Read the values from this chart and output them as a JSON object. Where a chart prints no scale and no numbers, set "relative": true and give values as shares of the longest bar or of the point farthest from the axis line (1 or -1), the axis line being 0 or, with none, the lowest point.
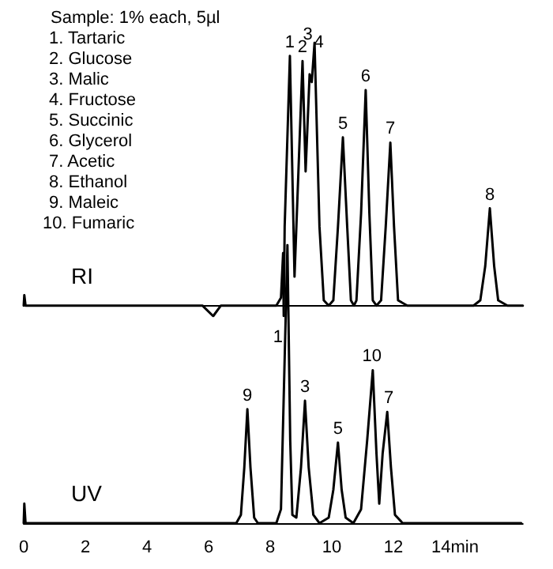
{
  "chart_data": [
    {
      "type": "line",
      "relative": true,
      "marker": "none",
      "line_style": "solid",
      "grid": false,
      "legend": false,
      "tick_labels": false,
      "xlim": [
        0,
        16.2
      ],
      "annotations": [
        "Sample: 1% each, 5µl",
        "1. Tartaric",
        "2. Glucose",
        "3. Malic",
        "4. Fructose",
        "5. Succinic",
        "6. Glycerol",
        "7. Acetic",
        "8. Ethanol",
        "9. Maleic",
        "10. Fumaric",
        {
          "text": "1",
          "x": 8.64,
          "y": 0.95
        },
        {
          "text": "2",
          "x": 9.05,
          "y": 0.93
        },
        {
          "text": "3",
          "x": 9.22,
          "y": 0.98
        },
        {
          "text": "4",
          "x": 9.58,
          "y": 0.95
        },
        {
          "text": "5",
          "x": 10.36,
          "y": 0.64
        },
        {
          "text": "6",
          "x": 11.1,
          "y": 0.82
        },
        {
          "text": "7",
          "x": 11.9,
          "y": 0.62
        },
        {
          "text": "8",
          "x": 15.13,
          "y": 0.37
        }
      ],
      "series": [
        {
          "name": "RI",
          "color": "#000000",
          "x": [
            0,
            0.02,
            0.06,
            5.8,
            6.15,
            6.4,
            8.2,
            8.35,
            8.42,
            8.44,
            8.47,
            8.64,
            8.79,
            9.05,
            9.15,
            9.28,
            9.35,
            9.44,
            9.6,
            9.74,
            9.9,
            10.05,
            10.2,
            10.36,
            10.5,
            10.62,
            10.72,
            10.8,
            10.95,
            11.1,
            11.22,
            11.33,
            11.45,
            11.6,
            11.75,
            11.9,
            12.02,
            12.15,
            12.45,
            14.6,
            14.82,
            14.98,
            15.13,
            15.27,
            15.4,
            15.7,
            16.2
          ],
          "values": [
            0,
            0.04,
            0,
            0,
            -0.04,
            0,
            0,
            0.03,
            0.2,
            -0.04,
            0.3,
            0.95,
            0.11,
            0.93,
            0.51,
            0.88,
            0.85,
            1,
            0.3,
            0.02,
            0,
            0.02,
            0.3,
            0.64,
            0.3,
            0.02,
            0,
            0.02,
            0.35,
            0.82,
            0.35,
            0.02,
            0,
            0.02,
            0.3,
            0.62,
            0.3,
            0.02,
            0,
            0,
            0.02,
            0.15,
            0.37,
            0.15,
            0.02,
            0,
            0
          ]
        }
      ]
    },
    {
      "type": "line",
      "relative": true,
      "marker": "none",
      "line_style": "solid",
      "grid": false,
      "legend": false,
      "tick_labels": "x",
      "xlim": [
        0,
        16.2
      ],
      "xticks": [
        0,
        2,
        4,
        6,
        8,
        10,
        12,
        {
          "value": 14,
          "label": "14min"
        }
      ],
      "annotations": [
        {
          "text": "9",
          "x": 7.26,
          "y": 0.41
        },
        {
          "text": "1",
          "x": 8.25,
          "y": 0.62
        },
        {
          "text": "3",
          "x": 9.13,
          "y": 0.44
        },
        {
          "text": "5",
          "x": 10.2,
          "y": 0.29
        },
        {
          "text": "10",
          "x": 11.3,
          "y": 0.55
        },
        {
          "text": "7",
          "x": 11.85,
          "y": 0.4
        }
      ],
      "series": [
        {
          "name": "UV",
          "color": "#000000",
          "x": [
            0,
            0.02,
            0.06,
            6.9,
            7.05,
            7.16,
            7.26,
            7.36,
            7.48,
            7.6,
            8.2,
            8.35,
            8.45,
            8.56,
            8.65,
            8.72,
            8.85,
            9.0,
            9.13,
            9.25,
            9.4,
            9.6,
            9.9,
            10.05,
            10.2,
            10.32,
            10.45,
            10.7,
            10.95,
            11.15,
            11.33,
            11.45,
            11.54,
            11.65,
            11.8,
            11.92,
            12.05,
            12.3,
            16.15
          ],
          "values": [
            0,
            0.07,
            0,
            0,
            0.03,
            0.2,
            0.41,
            0.2,
            0.02,
            0,
            0,
            0.05,
            0.5,
            1,
            0.3,
            0.03,
            0.02,
            0.2,
            0.44,
            0.2,
            0.03,
            0,
            0.02,
            0.12,
            0.29,
            0.12,
            0.02,
            0,
            0.05,
            0.3,
            0.55,
            0.25,
            0.07,
            0.25,
            0.4,
            0.2,
            0.03,
            0,
            0
          ]
        }
      ]
    }
  ]
}
